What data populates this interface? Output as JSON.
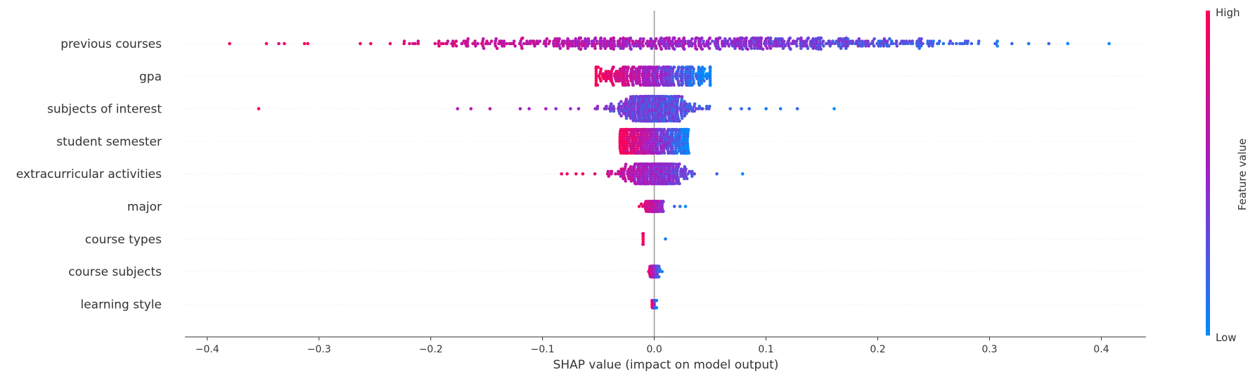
{
  "chart_data": {
    "type": "scatter",
    "subtype": "shap-beeswarm",
    "xlabel": "SHAP value (impact on model output)",
    "x_ticks": [
      "−0.4",
      "−0.3",
      "−0.2",
      "−0.1",
      "0.0",
      "0.1",
      "0.2",
      "0.3",
      "0.4"
    ],
    "x_tick_values": [
      -0.4,
      -0.3,
      -0.2,
      -0.1,
      0.0,
      0.1,
      0.2,
      0.3,
      0.4
    ],
    "xlim": [
      -0.42,
      0.44
    ],
    "features": [
      {
        "name": "previous courses",
        "min": -0.38,
        "max": 0.407,
        "n": 700,
        "spread_core": 0.14,
        "width": 0.34,
        "outliers_low": [
          -0.38,
          -0.347,
          -0.336,
          -0.331,
          -0.313,
          -0.31
        ],
        "outliers_high": [
          0.305,
          0.32,
          0.335,
          0.353,
          0.37,
          0.407
        ]
      },
      {
        "name": "gpa",
        "min": -0.052,
        "max": 0.05,
        "n": 450,
        "spread_core": 0.03,
        "width": 0.55,
        "outliers_low": [],
        "outliers_high": []
      },
      {
        "name": "subjects of interest",
        "min": -0.354,
        "max": 0.161,
        "n": 420,
        "spread_core": 0.018,
        "width": 0.75,
        "outliers_low": [
          -0.354,
          -0.176,
          -0.164,
          -0.147,
          -0.12,
          -0.112,
          -0.097,
          -0.088,
          -0.075
        ],
        "outliers_high": [
          0.068,
          0.078,
          0.085,
          0.1,
          0.113,
          0.128,
          0.161
        ]
      },
      {
        "name": "student semester",
        "min": -0.031,
        "max": 0.031,
        "n": 420,
        "spread_core": 0.031,
        "width": 0.72,
        "uniform": true,
        "outliers_low": [],
        "outliers_high": []
      },
      {
        "name": "extracurricular activities",
        "min": -0.083,
        "max": 0.079,
        "n": 380,
        "spread_core": 0.016,
        "width": 0.6,
        "outliers_low": [
          -0.083,
          -0.078,
          -0.07,
          -0.064
        ],
        "outliers_high": [
          0.056,
          0.079
        ]
      },
      {
        "name": "major",
        "min": -0.016,
        "max": 0.028,
        "n": 160,
        "spread_core": 0.005,
        "width": 0.3,
        "outliers_low": [],
        "outliers_high": [
          0.018,
          0.023,
          0.028
        ]
      },
      {
        "name": "course types",
        "min": -0.011,
        "max": 0.01,
        "n": 130,
        "spread_core": 0.003,
        "width": 0.32,
        "outliers_low": [],
        "outliers_high": [
          0.01
        ]
      },
      {
        "name": "course subjects",
        "min": -0.007,
        "max": 0.007,
        "n": 130,
        "spread_core": 0.002,
        "width": 0.32,
        "outliers_low": [],
        "outliers_high": []
      },
      {
        "name": "learning style",
        "min": -0.002,
        "max": 0.002,
        "n": 120,
        "spread_core": 0.001,
        "width": 0.22,
        "outliers_low": [],
        "outliers_high": []
      }
    ],
    "colorbar": {
      "title": "Feature value",
      "high_label": "High",
      "low_label": "Low",
      "high_color": "#ff0052",
      "low_color": "#008bfb"
    },
    "grid": false,
    "legend": "right"
  }
}
